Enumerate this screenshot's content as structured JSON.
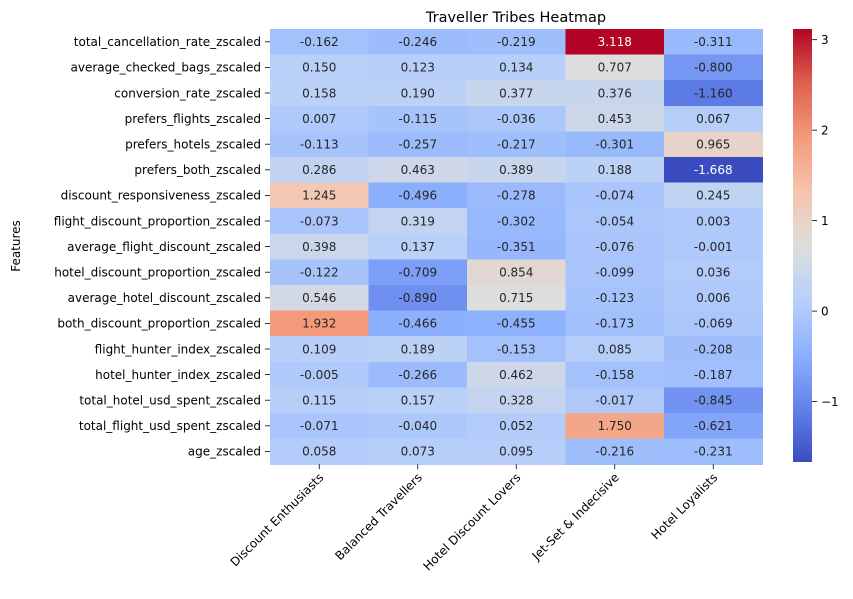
{
  "chart_data": {
    "type": "heatmap",
    "title": "Traveller Tribes Heatmap",
    "xlabel": "",
    "ylabel": "Features",
    "columns": [
      "Discount Enthusiasts",
      "Balanced Travellers",
      "Hotel Discount Lovers",
      "Jet-Set & Indecisive",
      "Hotel Loyalists"
    ],
    "rows": [
      "total_cancellation_rate_zscaled",
      "average_checked_bags_zscaled",
      "conversion_rate_zscaled",
      "prefers_flights_zscaled",
      "prefers_hotels_zscaled",
      "prefers_both_zscaled",
      "discount_responsiveness_zscaled",
      "flight_discount_proportion_zscaled",
      "average_flight_discount_zscaled",
      "hotel_discount_proportion_zscaled",
      "average_hotel_discount_zscaled",
      "both_discount_proportion_zscaled",
      "flight_hunter_index_zscaled",
      "hotel_hunter_index_zscaled",
      "total_hotel_usd_spent_zscaled",
      "total_flight_usd_spent_zscaled",
      "age_zscaled"
    ],
    "values": [
      [
        -0.162,
        -0.246,
        -0.219,
        3.118,
        -0.311
      ],
      [
        0.15,
        0.123,
        0.134,
        0.707,
        -0.8
      ],
      [
        0.158,
        0.19,
        0.377,
        0.376,
        -1.16
      ],
      [
        0.007,
        -0.115,
        -0.036,
        0.453,
        0.067
      ],
      [
        -0.113,
        -0.257,
        -0.217,
        -0.301,
        0.965
      ],
      [
        0.286,
        0.463,
        0.389,
        0.188,
        -1.668
      ],
      [
        1.245,
        -0.496,
        -0.278,
        -0.074,
        0.245
      ],
      [
        -0.073,
        0.319,
        -0.302,
        -0.054,
        0.003
      ],
      [
        0.398,
        0.137,
        -0.351,
        -0.076,
        -0.001
      ],
      [
        -0.122,
        -0.709,
        0.854,
        -0.099,
        0.036
      ],
      [
        0.546,
        -0.89,
        0.715,
        -0.123,
        0.006
      ],
      [
        1.932,
        -0.466,
        -0.455,
        -0.173,
        -0.069
      ],
      [
        0.109,
        0.189,
        -0.153,
        0.085,
        -0.208
      ],
      [
        -0.005,
        -0.266,
        0.462,
        -0.158,
        -0.187
      ],
      [
        0.115,
        0.157,
        0.328,
        -0.017,
        -0.845
      ],
      [
        -0.071,
        -0.04,
        0.052,
        1.75,
        -0.621
      ],
      [
        0.058,
        0.073,
        0.095,
        -0.216,
        -0.231
      ]
    ],
    "value_labels": [
      [
        "-0.162",
        "-0.246",
        "-0.219",
        "3.118",
        "-0.311"
      ],
      [
        "0.150",
        "0.123",
        "0.134",
        "0.707",
        "-0.800"
      ],
      [
        "0.158",
        "0.190",
        "0.377",
        "0.376",
        "-1.160"
      ],
      [
        "0.007",
        "-0.115",
        "-0.036",
        "0.453",
        "0.067"
      ],
      [
        "-0.113",
        "-0.257",
        "-0.217",
        "-0.301",
        "0.965"
      ],
      [
        "0.286",
        "0.463",
        "0.389",
        "0.188",
        "-1.668"
      ],
      [
        "1.245",
        "-0.496",
        "-0.278",
        "-0.074",
        "0.245"
      ],
      [
        "-0.073",
        "0.319",
        "-0.302",
        "-0.054",
        "0.003"
      ],
      [
        "0.398",
        "0.137",
        "-0.351",
        "-0.076",
        "-0.001"
      ],
      [
        "-0.122",
        "-0.709",
        "0.854",
        "-0.099",
        "0.036"
      ],
      [
        "0.546",
        "-0.890",
        "0.715",
        "-0.123",
        "0.006"
      ],
      [
        "1.932",
        "-0.466",
        "-0.455",
        "-0.173",
        "-0.069"
      ],
      [
        "0.109",
        "0.189",
        "-0.153",
        "0.085",
        "-0.208"
      ],
      [
        "-0.005",
        "-0.266",
        "0.462",
        "-0.158",
        "-0.187"
      ],
      [
        "0.115",
        "0.157",
        "0.328",
        "-0.017",
        "-0.845"
      ],
      [
        "-0.071",
        "-0.040",
        "0.052",
        "1.750",
        "-0.621"
      ],
      [
        "0.058",
        "0.073",
        "0.095",
        "-0.216",
        "-0.231"
      ]
    ],
    "colorbar": {
      "colormap": "coolwarm",
      "vmin": -1.668,
      "vmax": 3.118,
      "ticks": [
        -1,
        0,
        1,
        2,
        3
      ],
      "tick_labels": [
        "−1",
        "0",
        "1",
        "2",
        "3"
      ]
    },
    "annotation_colors": {
      "dark": "#262626",
      "light": "#ffffff"
    },
    "grid": false,
    "legend": "colorbar-right"
  }
}
